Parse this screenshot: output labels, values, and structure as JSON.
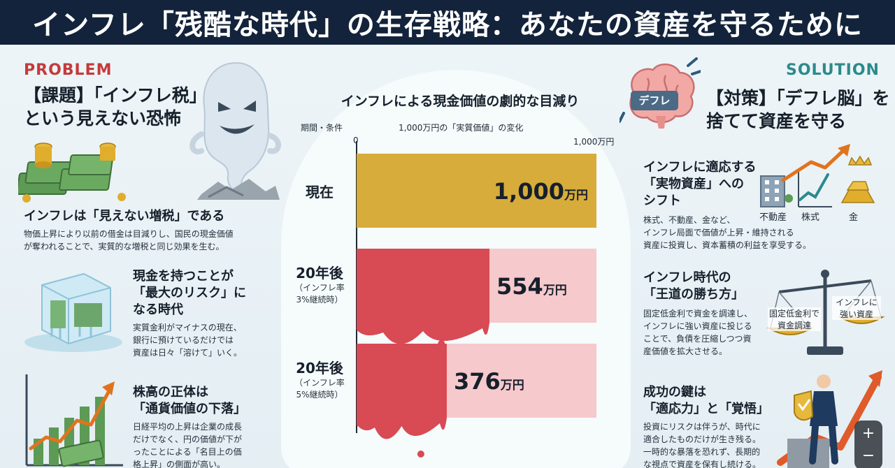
{
  "header": {
    "title": "インフレ「残酷な時代」の生存戦略：あなたの資産を守るために"
  },
  "problem": {
    "tag": "PROBLEM",
    "title_lines": [
      "【課題】「インフレ税」",
      "という見えない恐怖"
    ],
    "sections": [
      {
        "title_lines": [
          "インフレは「見えない増税」である"
        ],
        "body_lines": [
          "物価上昇により以前の借金は目減りし、国民の現金価値",
          "が奪われることで、実質的な増税と同じ効果を生む。"
        ]
      },
      {
        "title_lines": [
          "現金を持つことが",
          "「最大のリスク」に",
          "なる時代"
        ],
        "body_lines": [
          "実質金利がマイナスの現在、",
          "銀行に預けているだけでは",
          "資産は日々「溶けて」いく。"
        ]
      },
      {
        "title_lines": [
          "株高の正体は",
          "「通貨価値の下落」"
        ],
        "body_lines": [
          "日経平均の上昇は企業の成長",
          "だけでなく、円の価値が下が",
          "ったことによる「名目上の価",
          "格上昇」の側面が高い。"
        ]
      }
    ]
  },
  "chart": {
    "title": "インフレによる現金価値の劇的な目減り",
    "col_period": "期間・条件",
    "col_change": "1,000万円の「実質価値」の変化",
    "tick_min": "0",
    "tick_max": "1,000万円",
    "unit": "万円"
  },
  "chart_data": {
    "type": "bar",
    "title": "インフレによる現金価値の劇的な目減り",
    "categories": [
      "現在",
      "20年後（インフレ率3%継続時）",
      "20年後（インフレ率5%継続時）"
    ],
    "values": [
      1000,
      554,
      376
    ],
    "value_labels": [
      "1,000",
      "554",
      "376"
    ],
    "unit": "万円",
    "xlim": [
      0,
      1000
    ],
    "orientation": "horizontal",
    "colors": [
      "#d8ac3a",
      "#d84a54",
      "#d84a54"
    ],
    "rows": [
      {
        "main": "現在",
        "sub_lines": []
      },
      {
        "main": "20年後",
        "sub_lines": [
          "（インフレ率",
          "3%継続時）"
        ]
      },
      {
        "main": "20年後",
        "sub_lines": [
          "（インフレ率",
          "5%継続時）"
        ]
      }
    ]
  },
  "solution": {
    "tag": "SOLUTION",
    "title_lines": [
      "【対策】「デフレ脳」を",
      "捨てて資産を守る"
    ],
    "brain_label": "デフレ",
    "sections": [
      {
        "title_lines": [
          "インフレに適応する",
          "「実物資産」への",
          "シフト"
        ],
        "body_lines": [
          "株式、不動産、金など、",
          "インフレ局面で価値が上昇・維持される",
          "資産に投資し、資本蓄積の利益を享受する。"
        ],
        "icon_labels": [
          "不動産",
          "株式",
          "金"
        ]
      },
      {
        "title_lines": [
          "インフレ時代の",
          "「王道の勝ち方」"
        ],
        "body_lines": [
          "固定低金利で資金を調達し、",
          "インフレに強い資産に投じる",
          "ことで、負債を圧縮しつつ資",
          "産価値を拡大させる。"
        ],
        "scale_left_lines": [
          "固定低金利で",
          "資金調達"
        ],
        "scale_right_lines": [
          "インフレに",
          "強い資産"
        ]
      },
      {
        "title_lines": [
          "成功の鍵は",
          "「適応力」と「覚悟」"
        ],
        "body_lines": [
          "投資にリスクは伴うが、時代に",
          "適合したものだけが生き残る。",
          "一時的な暴落を恐れず、長期的",
          "な視点で資産を保有し続ける。"
        ]
      }
    ]
  },
  "zoom": {
    "in": "+",
    "out": "−"
  },
  "colors": {
    "header_bg": "#13233b",
    "problem": "#c43a3a",
    "solution": "#2b8a8c",
    "gold": "#d8ac3a",
    "red": "#d84a54",
    "pink": "#f6c9cc"
  }
}
